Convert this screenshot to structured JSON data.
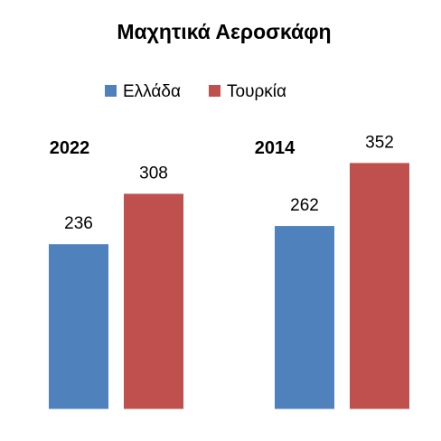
{
  "chart_data": {
    "type": "bar",
    "title": "Μαχητικά Αεροσκάφη",
    "categories": [
      "2022",
      "2014"
    ],
    "series": [
      {
        "name": "Ελλάδα",
        "color": "#4F81BD",
        "values": [
          236,
          262
        ]
      },
      {
        "name": "Τουρκία",
        "color": "#C0504D",
        "values": [
          308,
          352
        ]
      }
    ],
    "ylim": [
      0,
      400
    ],
    "xlabel": "",
    "ylabel": "",
    "grid": false,
    "legend_position": "top-center"
  }
}
